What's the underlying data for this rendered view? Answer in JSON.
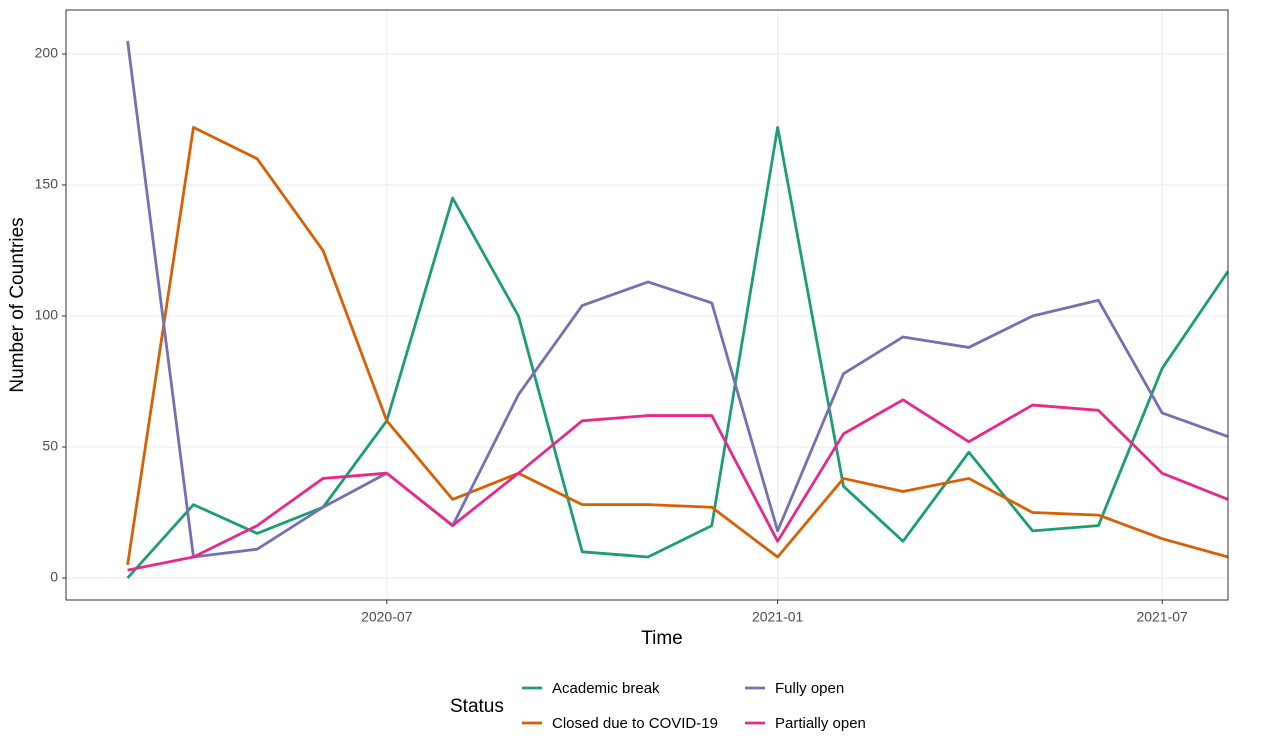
{
  "chart_data": {
    "type": "line",
    "x_label": "Time",
    "y_label": "Number of Countries",
    "x": [
      "2020-03",
      "2020-04",
      "2020-05",
      "2020-06",
      "2020-07",
      "2020-08",
      "2020-09",
      "2020-10",
      "2020-11",
      "2020-12",
      "2021-01",
      "2021-02",
      "2021-03",
      "2021-04",
      "2021-05",
      "2021-06",
      "2021-07",
      "2021-08"
    ],
    "series": [
      {
        "name": "Academic break",
        "color": "#1b9e77",
        "values": [
          0,
          28,
          17,
          27,
          60,
          145,
          100,
          10,
          8,
          20,
          172,
          35,
          14,
          48,
          18,
          20,
          80,
          117
        ]
      },
      {
        "name": "Closed due to COVID-19",
        "color": "#d95f02",
        "values": [
          5,
          172,
          160,
          125,
          60,
          30,
          40,
          28,
          28,
          27,
          8,
          38,
          33,
          38,
          25,
          24,
          15,
          8
        ]
      },
      {
        "name": "Fully open",
        "color": "#7570b3",
        "values": [
          205,
          8,
          11,
          27,
          40,
          20,
          70,
          104,
          113,
          105,
          18,
          78,
          92,
          88,
          100,
          106,
          63,
          54
        ]
      },
      {
        "name": "Partially open",
        "color": "#e7298a",
        "values": [
          3,
          8,
          20,
          38,
          40,
          20,
          40,
          60,
          62,
          62,
          14,
          55,
          68,
          52,
          66,
          64,
          40,
          30
        ]
      }
    ],
    "xlim": [
      "2020-02",
      "2021-08"
    ],
    "xticks": [
      "2020-07",
      "2021-01",
      "2021-07"
    ],
    "ylim": [
      -8.4,
      216.8
    ],
    "yticks": [
      0,
      50,
      100,
      150,
      200
    ],
    "grid": true,
    "legend_title": "Status",
    "legend": "bottom"
  }
}
